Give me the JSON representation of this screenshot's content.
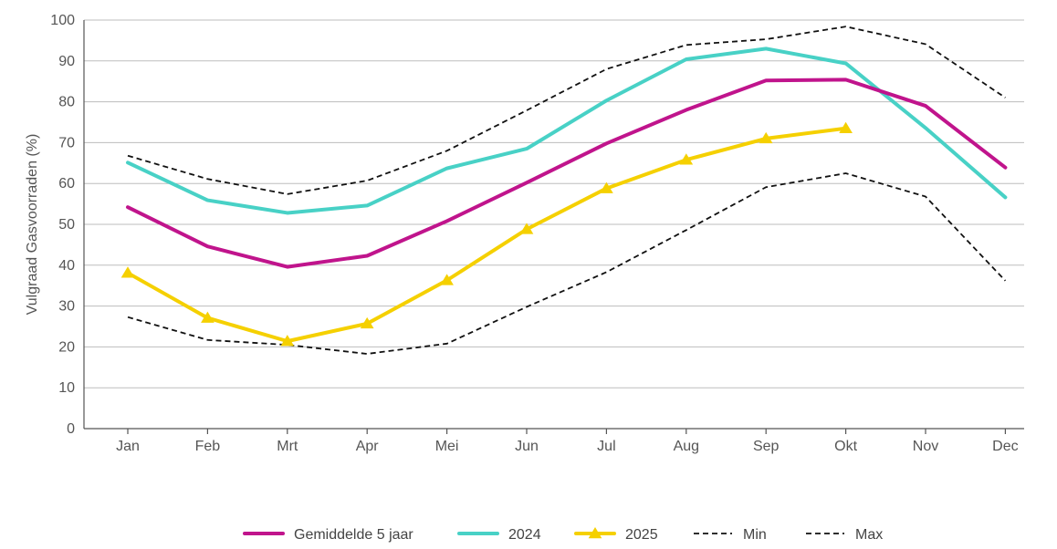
{
  "chart_data": {
    "type": "line",
    "title": "",
    "xlabel": "",
    "ylabel": "Vulgraad Gasvoorraden (%)",
    "ylim": [
      0,
      100
    ],
    "yticks": [
      0,
      10,
      20,
      30,
      40,
      50,
      60,
      70,
      80,
      90,
      100
    ],
    "grid": true,
    "legend_position": "bottom",
    "categories": [
      "Jan",
      "Feb",
      "Mrt",
      "Apr",
      "Mei",
      "Jun",
      "Jul",
      "Aug",
      "Sep",
      "Okt",
      "Nov",
      "Dec"
    ],
    "series": [
      {
        "name": "Min",
        "color": "#111111",
        "style": "dashed",
        "values": [
          27.3,
          21.7,
          20.5,
          18.3,
          20.8,
          29.8,
          38.3,
          48.6,
          59.1,
          62.5,
          56.8,
          36.2
        ]
      },
      {
        "name": "Max",
        "color": "#111111",
        "style": "dashed",
        "values": [
          66.8,
          61.1,
          57.4,
          60.7,
          68.0,
          77.9,
          88.0,
          93.9,
          95.3,
          98.4,
          94.1,
          81.0
        ]
      },
      {
        "name": "2024",
        "color": "#48d1c6",
        "style": "solid",
        "values": [
          65.1,
          55.9,
          52.8,
          54.6,
          63.7,
          68.5,
          80.3,
          90.4,
          93.0,
          89.4,
          73.6,
          56.6
        ]
      },
      {
        "name": "Gemiddelde 5 jaar",
        "color": "#c0148c",
        "style": "solid",
        "values": [
          54.2,
          44.6,
          39.6,
          42.3,
          50.8,
          60.2,
          69.8,
          78.0,
          85.2,
          85.4,
          79.0,
          63.9
        ]
      },
      {
        "name": "2025",
        "color": "#f5d000",
        "style": "solid-triangle",
        "values": [
          38.1,
          27.1,
          21.4,
          25.7,
          36.3,
          48.8,
          58.8,
          65.8,
          71.0,
          73.5,
          null,
          null
        ]
      }
    ],
    "legend": [
      "Gemiddelde 5 jaar",
      "2024",
      "2025",
      "Min",
      "Max"
    ]
  }
}
